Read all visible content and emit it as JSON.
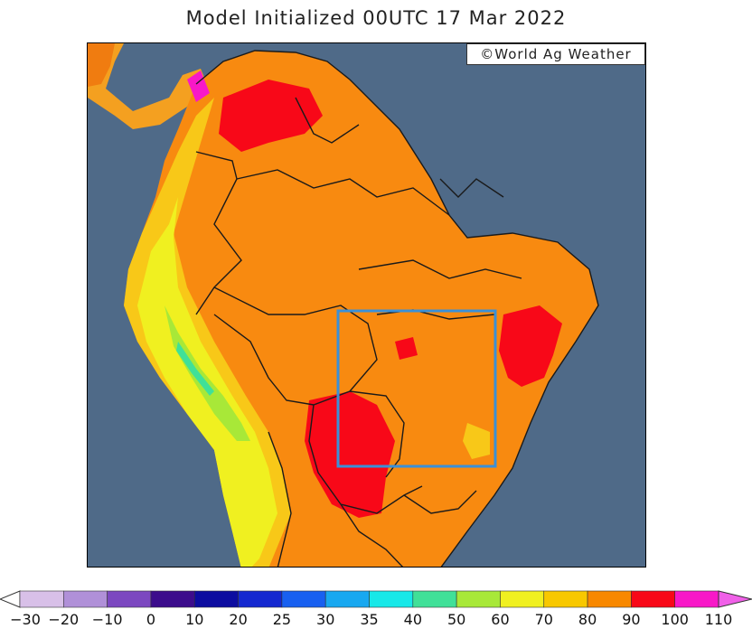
{
  "title": "Model Initialized 00UTC 17 Mar 2022",
  "credit": {
    "symbol": "©",
    "text": "World Ag Weather"
  },
  "map": {
    "ocean_color": "#4f6a88",
    "border_color": "#1a1a1a",
    "highlight_box_color": "#3a90d8"
  },
  "colorbar": {
    "ticks": [
      "−30",
      "−20",
      "−10",
      "0",
      "10",
      "20",
      "25",
      "30",
      "35",
      "40",
      "50",
      "60",
      "70",
      "80",
      "90",
      "100",
      "110"
    ],
    "colors": [
      "#d8c0e8",
      "#b090d8",
      "#7c48c0",
      "#3c0c8c",
      "#0c0ca0",
      "#1428d0",
      "#1860f0",
      "#18a8f0",
      "#18e8e8",
      "#40e098",
      "#a8e838",
      "#f0f020",
      "#f8c800",
      "#f88800",
      "#f80818",
      "#f818c8"
    ]
  }
}
